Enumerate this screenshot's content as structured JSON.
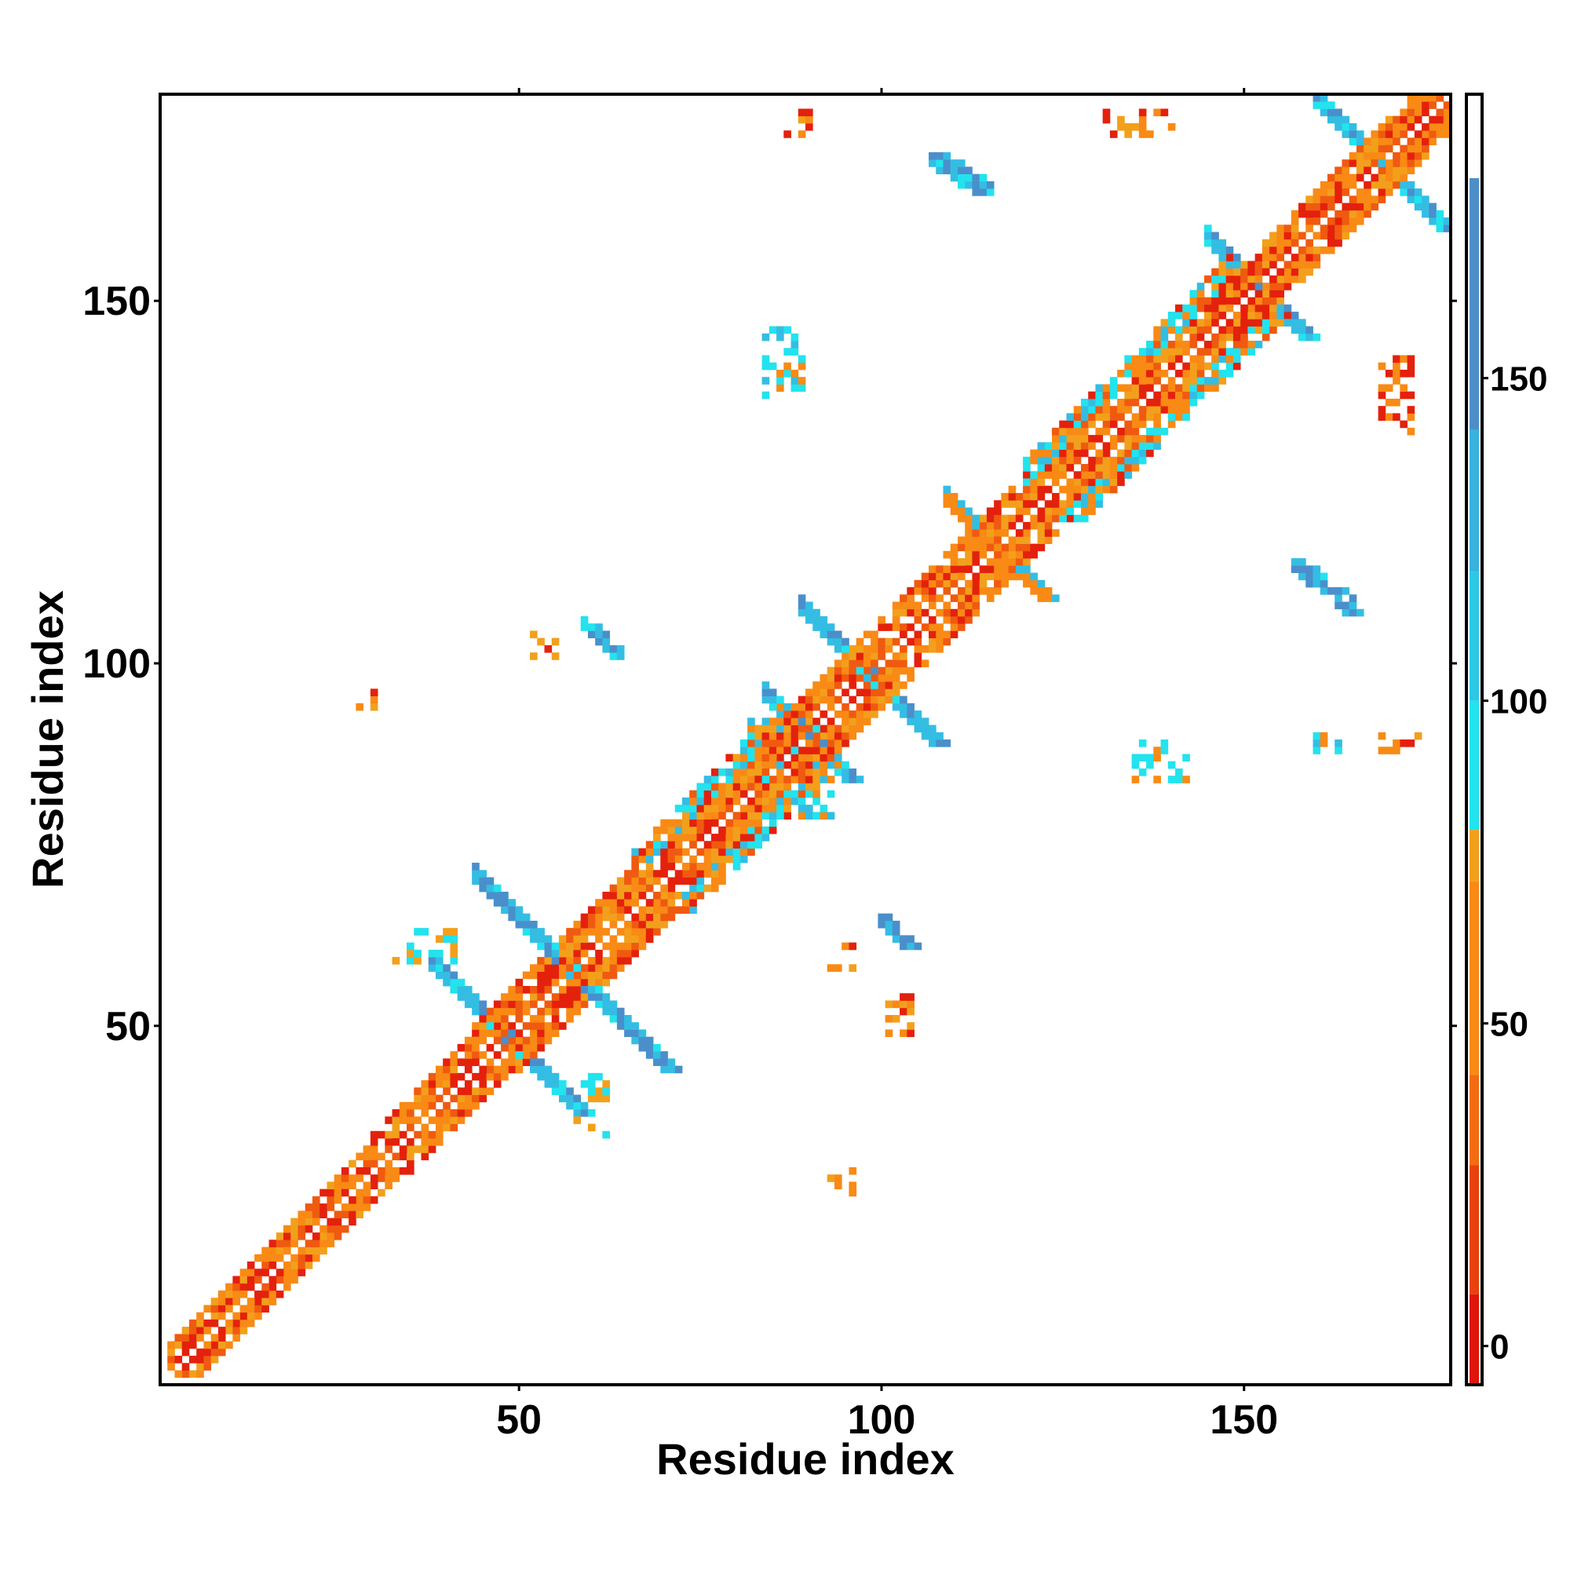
{
  "chart_data": {
    "type": "heatmap",
    "title": "",
    "xlabel": "Residue index",
    "ylabel": "Residue index",
    "xlim": [
      1,
      178
    ],
    "ylim": [
      1,
      178
    ],
    "x_ticks": [
      50,
      100,
      150
    ],
    "y_ticks": [
      50,
      100,
      150
    ],
    "colorbar": {
      "range": [
        -6,
        194
      ],
      "ticks": [
        0,
        50,
        100,
        150
      ],
      "bands": [
        {
          "from": -6,
          "to": 8,
          "color": "#e0150a"
        },
        {
          "from": 8,
          "to": 28,
          "color": "#e8420e"
        },
        {
          "from": 28,
          "to": 42,
          "color": "#f36c12"
        },
        {
          "from": 42,
          "to": 72,
          "color": "#f98a15"
        },
        {
          "from": 72,
          "to": 80,
          "color": "#f2a01c"
        },
        {
          "from": 80,
          "to": 100,
          "color": "#22e3ee"
        },
        {
          "from": 100,
          "to": 120,
          "color": "#2cc8e6"
        },
        {
          "from": 120,
          "to": 142,
          "color": "#38b2df"
        },
        {
          "from": 142,
          "to": 181,
          "color": "#4d8ec8"
        },
        {
          "from": 181,
          "to": 194,
          "color": "#ffffff"
        }
      ]
    },
    "color_groups": {
      "red": "#e4210c",
      "orange_red": "#ef5a10",
      "orange": "#f98a15",
      "amber": "#f2a01c",
      "cyan": "#22e3ee",
      "sky": "#34bde3",
      "steel": "#4a8fcb"
    },
    "cell_groups": {
      "diagonal_main": {
        "description_free": true,
        "segments": [
          [
            2,
            178
          ]
        ],
        "width_profile": [
          [
            2,
            30,
            4,
            "orange"
          ],
          [
            30,
            44,
            5,
            "orange"
          ],
          [
            44,
            66,
            6,
            "orange"
          ],
          [
            66,
            86,
            8,
            "orange"
          ],
          [
            86,
            120,
            6,
            "orange"
          ],
          [
            120,
            148,
            8,
            "orange"
          ],
          [
            148,
            178,
            5,
            "orange"
          ]
        ]
      },
      "antidiagonal_bands": [
        {
          "center": [
            56,
            58
          ],
          "half_len": 12,
          "width": 3,
          "color": "sky"
        },
        {
          "center": [
            48,
            48
          ],
          "half_len": 10,
          "width": 3,
          "color": "sky"
        },
        {
          "center": [
            89,
            90
          ],
          "half_len": 5,
          "width": 3,
          "color": "sky"
        },
        {
          "center": [
            98,
            98
          ],
          "half_len": 9,
          "width": 3,
          "color": "sky"
        },
        {
          "center": [
            115,
            116
          ],
          "half_len": 6,
          "width": 3,
          "color": "orange"
        },
        {
          "center": [
            168,
            169
          ],
          "half_len": 8,
          "width": 3,
          "color": "sky"
        },
        {
          "center": [
            151,
            152
          ],
          "half_len": 6,
          "width": 3,
          "color": "sky"
        }
      ],
      "offdiagonal_blobs": [
        {
          "x": [
            59,
            64
          ],
          "y": [
            101,
            106
          ],
          "dir": -1,
          "color": "sky"
        },
        {
          "x": [
            52,
            55
          ],
          "y": [
            101,
            104
          ],
          "dir": 0,
          "color": "orange"
        },
        {
          "x": [
            28,
            31
          ],
          "y": [
            94,
            96
          ],
          "dir": 0,
          "color": "orange"
        },
        {
          "x": [
            87,
            90
          ],
          "y": [
            173,
            177
          ],
          "dir": 0,
          "color": "orange"
        },
        {
          "x": [
            107,
            115
          ],
          "y": [
            165,
            170
          ],
          "dir": -1,
          "color": "sky"
        },
        {
          "x": [
            84,
            89
          ],
          "y": [
            136,
            146
          ],
          "dir": 0,
          "color": "cyan"
        },
        {
          "x": [
            131,
            140
          ],
          "y": [
            173,
            176
          ],
          "dir": 0,
          "color": "orange"
        },
        {
          "x": [
            157,
            166
          ],
          "y": [
            107,
            114
          ],
          "dir": -1,
          "color": "sky"
        },
        {
          "x": [
            169,
            174
          ],
          "y": [
            88,
            90
          ],
          "dir": 0,
          "color": "orange"
        },
        {
          "x": [
            169,
            173
          ],
          "y": [
            132,
            142
          ],
          "dir": 0,
          "color": "red"
        },
        {
          "x": [
            135,
            142
          ],
          "y": [
            84,
            89
          ],
          "dir": 0,
          "color": "cyan"
        },
        {
          "x": [
            160,
            163
          ],
          "y": [
            88,
            90
          ],
          "dir": 0,
          "color": "cyan"
        },
        {
          "x": [
            100,
            105
          ],
          "y": [
            60,
            65
          ],
          "dir": -1,
          "color": "steel"
        },
        {
          "x": [
            93,
            96
          ],
          "y": [
            58,
            61
          ],
          "dir": 0,
          "color": "orange"
        },
        {
          "x": [
            101,
            104
          ],
          "y": [
            49,
            54
          ],
          "dir": 0,
          "color": "orange"
        },
        {
          "x": [
            93,
            96
          ],
          "y": [
            27,
            30
          ],
          "dir": 0,
          "color": "orange"
        },
        {
          "x": [
            33,
            41
          ],
          "y": [
            59,
            63
          ],
          "dir": 0,
          "color": "amber"
        },
        {
          "x": [
            58,
            62
          ],
          "y": [
            35,
            43
          ],
          "dir": 0,
          "color": "amber"
        },
        {
          "x": [
            82,
            93
          ],
          "y": [
            79,
            92
          ],
          "dir": 0,
          "color": "cyan"
        }
      ]
    }
  }
}
